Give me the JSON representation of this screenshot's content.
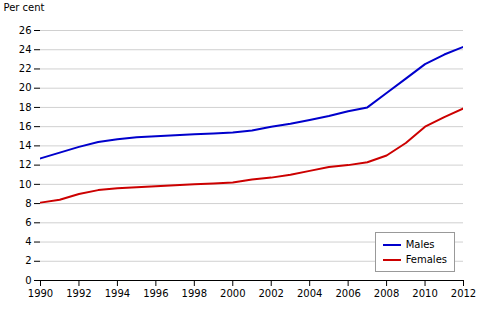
{
  "chart_data": {
    "type": "line",
    "ylabel": "Per cent",
    "x": [
      1990,
      1991,
      1992,
      1993,
      1994,
      1995,
      1996,
      1997,
      1998,
      1999,
      2000,
      2001,
      2002,
      2003,
      2004,
      2005,
      2006,
      2007,
      2008,
      2009,
      2010,
      2011,
      2012
    ],
    "series": [
      {
        "name": "Males",
        "color": "#0000cc",
        "values": [
          12.7,
          13.3,
          13.9,
          14.4,
          14.7,
          14.9,
          15.0,
          15.1,
          15.2,
          15.3,
          15.4,
          15.6,
          16.0,
          16.3,
          16.7,
          17.1,
          17.6,
          18.0,
          19.5,
          21.0,
          22.5,
          23.5,
          24.3
        ]
      },
      {
        "name": "Females",
        "color": "#cc0000",
        "values": [
          8.1,
          8.4,
          9.0,
          9.4,
          9.6,
          9.7,
          9.8,
          9.9,
          10.0,
          10.1,
          10.2,
          10.5,
          10.7,
          11.0,
          11.4,
          11.8,
          12.0,
          12.3,
          13.0,
          14.3,
          16.0,
          17.0,
          17.9
        ]
      }
    ],
    "xlim": [
      1990,
      2012
    ],
    "xticks": [
      1990,
      1992,
      1994,
      1996,
      1998,
      2000,
      2002,
      2004,
      2006,
      2008,
      2010,
      2012
    ],
    "ylim": [
      0,
      26
    ],
    "yticks": [
      0,
      2,
      4,
      6,
      8,
      10,
      12,
      14,
      16,
      18,
      20,
      22,
      24,
      26
    ],
    "grid": "y",
    "legend": "lower right"
  }
}
